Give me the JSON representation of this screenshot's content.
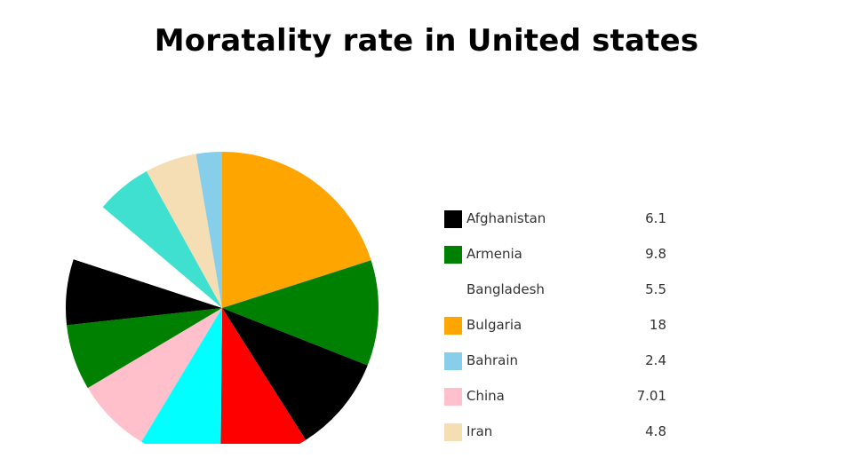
{
  "chart_data": {
    "type": "pie",
    "title": "Moratality rate in United states",
    "legend_position": "right",
    "slices": [
      {
        "label": "Afghanistan",
        "value": 6.1,
        "color": "#000000"
      },
      {
        "label": "Armenia",
        "value": 9.8,
        "color": "#008000"
      },
      {
        "label": "Bangladesh",
        "value": 5.5,
        "color": "#ffffff"
      },
      {
        "label": "Bulgaria",
        "value": 18,
        "color": "#ffa500"
      },
      {
        "label": "Bahrain",
        "value": 2.4,
        "color": "#87ceeb"
      },
      {
        "label": "China",
        "value": 7.01,
        "color": "#ffc0cb"
      },
      {
        "label": "Iran",
        "value": 4.8,
        "color": "#f5deb3"
      }
    ],
    "pie_order": [
      {
        "label": "Bulgaria",
        "value": 18,
        "color": "#ffa500"
      },
      {
        "label": "Armenia",
        "value": 9.8,
        "color": "#008000"
      },
      {
        "label": "Afghanistan",
        "value": 9,
        "color": "#000000"
      },
      {
        "label": "",
        "value": 8.2,
        "color": "#ff0000"
      },
      {
        "label": "",
        "value": 7.6,
        "color": "#00ffff"
      },
      {
        "label": "China",
        "value": 7.01,
        "color": "#ffc0cb"
      },
      {
        "label": "Armenia",
        "value": 6.1,
        "color": "#008000"
      },
      {
        "label": "Afghanistan",
        "value": 6.1,
        "color": "#000000"
      },
      {
        "label": "Bangladesh",
        "value": 5.5,
        "color": "#ffffff"
      },
      {
        "label": "",
        "value": 5.2,
        "color": "#40e0d0"
      },
      {
        "label": "Iran",
        "value": 4.8,
        "color": "#f5deb3"
      },
      {
        "label": "Bahrain",
        "value": 2.4,
        "color": "#87ceeb"
      }
    ]
  }
}
